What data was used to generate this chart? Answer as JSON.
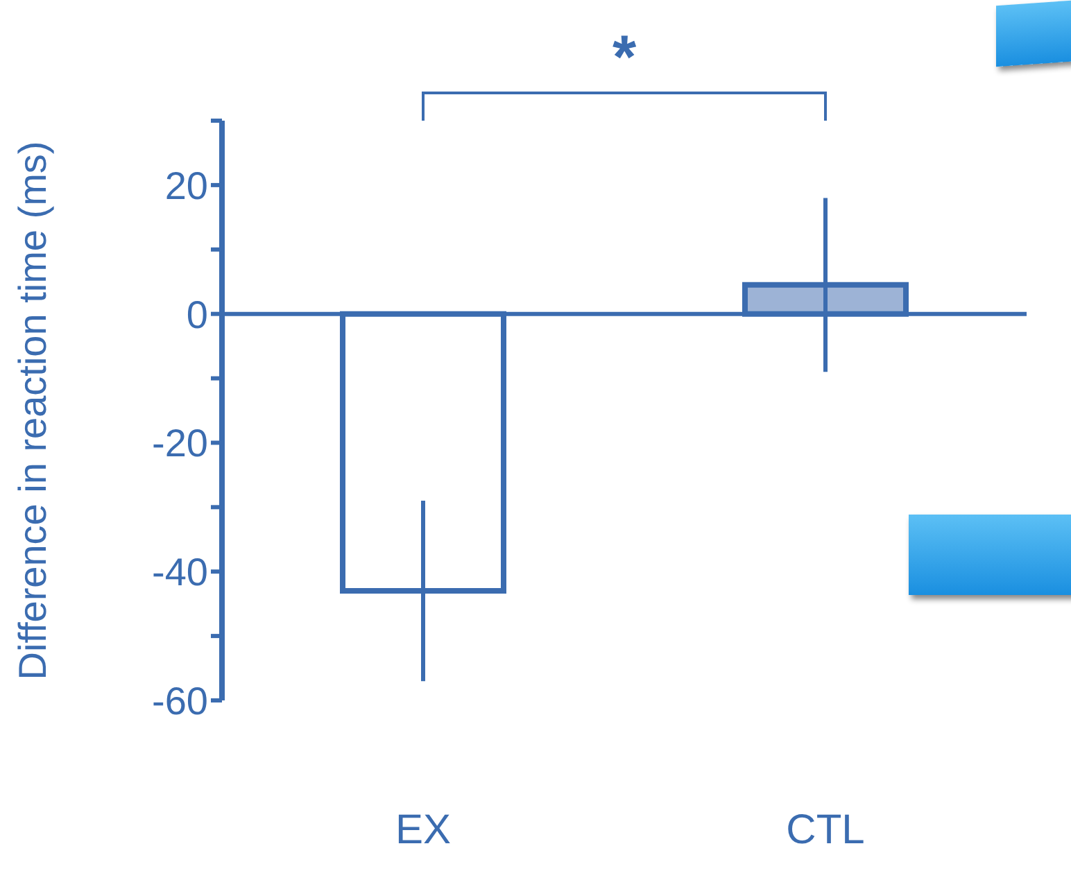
{
  "chart_data": {
    "type": "bar",
    "ylabel": "Difference in reaction time (ms)",
    "categories": [
      "EX",
      "CTL"
    ],
    "series": [
      {
        "color": "#3b6cb0",
        "colors": [
          "#ffffff",
          "#9db3d6"
        ],
        "values": [
          -43,
          4.5
        ],
        "errors": [
          14,
          13.5
        ]
      }
    ],
    "ylim": [
      -60,
      30
    ],
    "yticks": [
      {
        "value": 30,
        "label": null
      },
      20,
      {
        "value": 10,
        "label": null
      },
      0,
      {
        "value": -10,
        "label": null
      },
      -20,
      {
        "value": -30,
        "label": null
      },
      -40,
      {
        "value": -50,
        "label": null
      },
      -60
    ],
    "ref_lines": [
      {
        "axis": "y",
        "value": 0
      }
    ],
    "annotations": [
      "*"
    ]
  }
}
